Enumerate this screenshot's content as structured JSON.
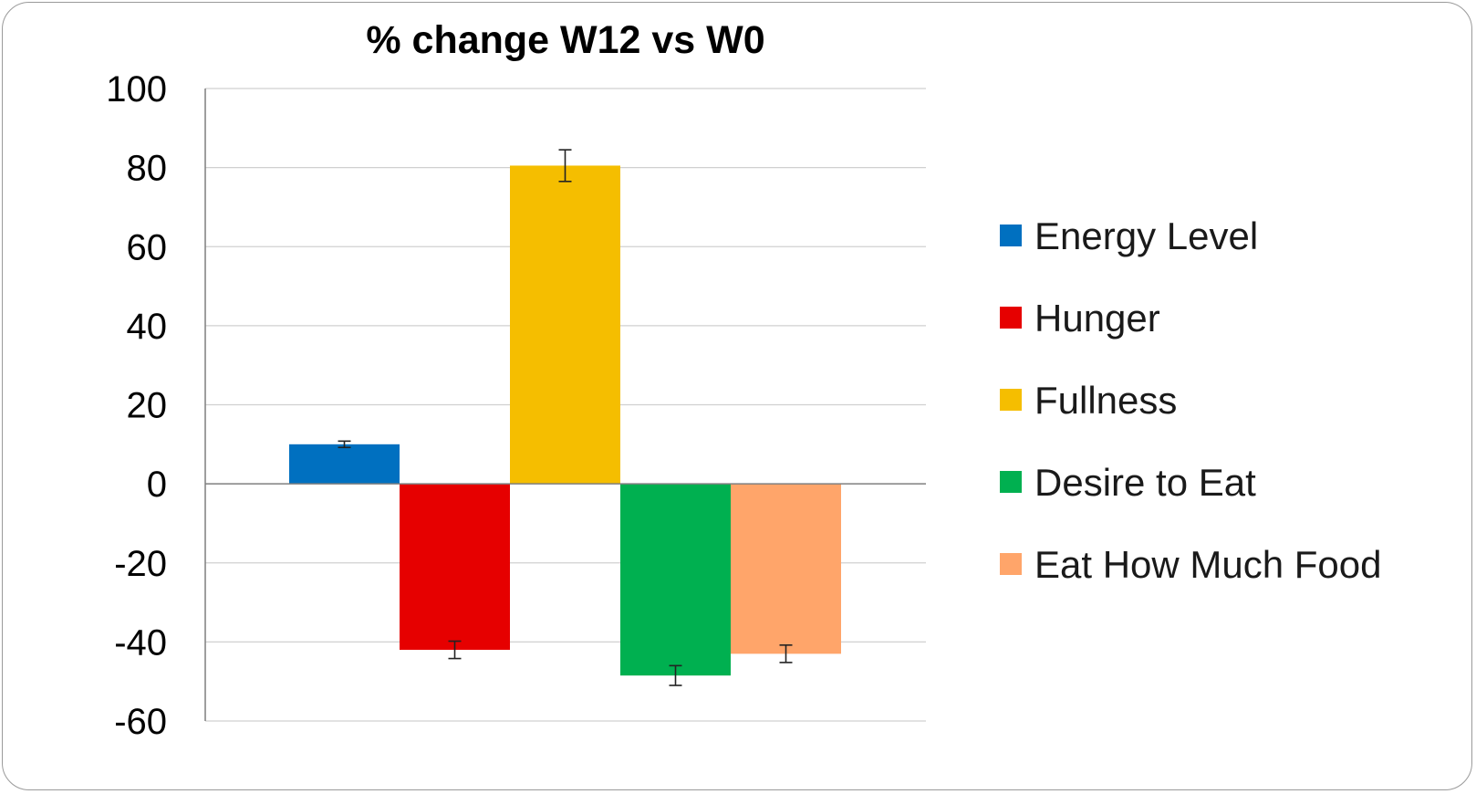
{
  "chart_data": {
    "type": "bar",
    "title": "% change W12 vs W0",
    "xlabel": "",
    "ylabel": "",
    "ylim": [
      -60,
      100
    ],
    "yticks": [
      100,
      80,
      60,
      40,
      20,
      0,
      -20,
      -40,
      -60
    ],
    "grid": true,
    "legend_position": "right",
    "series": [
      {
        "name": "Energy Level",
        "value": 10,
        "error": 0.8,
        "color": "#0070C0"
      },
      {
        "name": "Hunger",
        "value": -42,
        "error": 2.2,
        "color": "#E60000"
      },
      {
        "name": "Fullness",
        "value": 80.5,
        "error": 4,
        "color": "#F5BE00"
      },
      {
        "name": "Desire to Eat",
        "value": -48.5,
        "error": 2.5,
        "color": "#00B050"
      },
      {
        "name": "Eat How Much Food",
        "value": -43,
        "error": 2.2,
        "color": "#FFA56A"
      }
    ]
  }
}
